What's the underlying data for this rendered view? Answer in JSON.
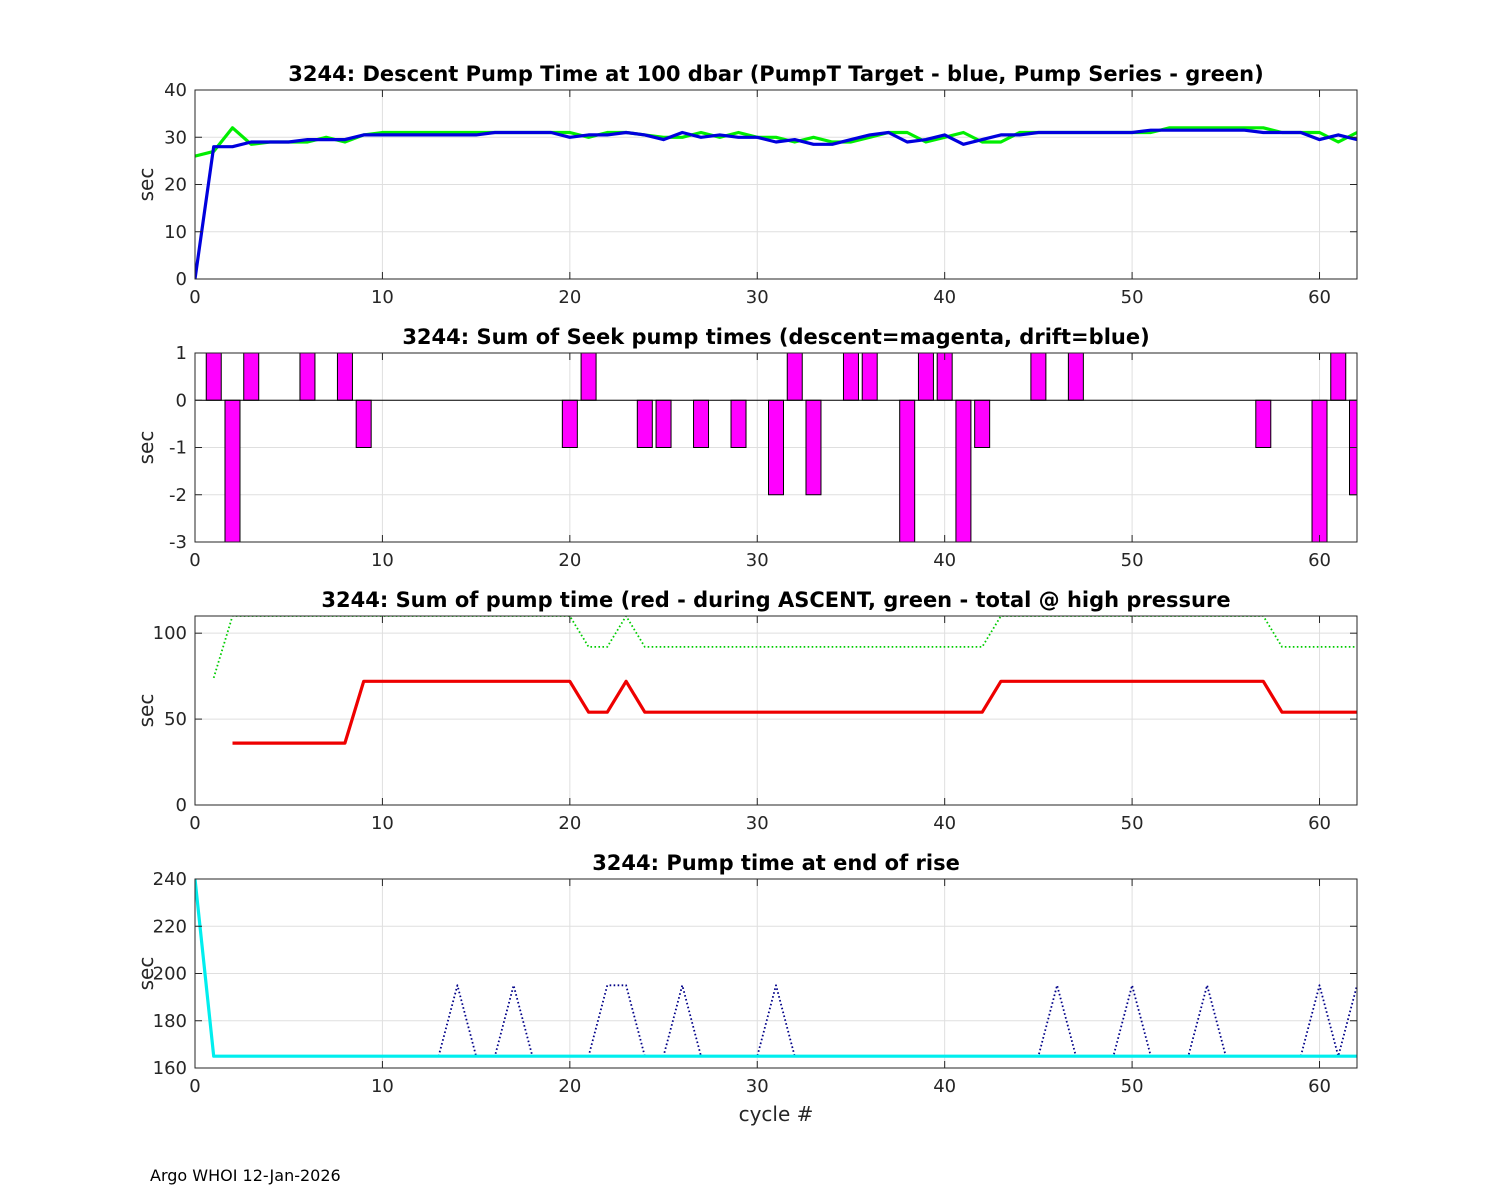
{
  "footer": "Argo WHOI 12-Jan-2026",
  "chart_data": [
    {
      "type": "line",
      "title": "3244: Descent Pump Time at 100 dbar (PumpT Target - blue, Pump Series - green)",
      "xlabel": "",
      "ylabel": "sec",
      "xlim": [
        0,
        62
      ],
      "ylim": [
        0,
        40
      ],
      "xticks": [
        0,
        10,
        20,
        30,
        40,
        50,
        60
      ],
      "yticks": [
        0,
        10,
        20,
        30,
        40
      ],
      "grid": true,
      "series": [
        {
          "color": "#00ee00",
          "style": "solid",
          "x": [
            0,
            1,
            2,
            3,
            4,
            5,
            6,
            7,
            8,
            9,
            10,
            11,
            12,
            13,
            14,
            15,
            16,
            17,
            18,
            19,
            20,
            21,
            22,
            23,
            24,
            25,
            26,
            27,
            28,
            29,
            30,
            31,
            32,
            33,
            34,
            35,
            36,
            37,
            38,
            39,
            40,
            41,
            42,
            43,
            44,
            45,
            46,
            47,
            48,
            49,
            50,
            51,
            52,
            53,
            54,
            55,
            56,
            57,
            58,
            59,
            60,
            61,
            62
          ],
          "y": [
            26,
            27,
            32,
            28.5,
            29,
            29,
            29,
            30,
            29,
            30.5,
            31,
            31,
            31,
            31,
            31,
            31,
            31,
            31,
            31,
            31,
            31,
            30,
            31,
            31,
            30.5,
            30,
            30,
            31,
            30,
            31,
            30,
            30,
            29,
            30,
            29,
            29,
            30,
            31,
            31,
            29,
            30,
            31,
            29,
            29,
            31,
            31,
            31,
            31,
            31,
            31,
            31,
            31,
            32,
            32,
            32,
            32,
            32,
            32,
            31,
            31,
            31,
            29,
            31
          ]
        },
        {
          "color": "#0000dd",
          "style": "solid",
          "x": [
            0,
            1,
            2,
            3,
            4,
            5,
            6,
            7,
            8,
            9,
            10,
            11,
            12,
            13,
            14,
            15,
            16,
            17,
            18,
            19,
            20,
            21,
            22,
            23,
            24,
            25,
            26,
            27,
            28,
            29,
            30,
            31,
            32,
            33,
            34,
            35,
            36,
            37,
            38,
            39,
            40,
            41,
            42,
            43,
            44,
            45,
            46,
            47,
            48,
            49,
            50,
            51,
            52,
            53,
            54,
            55,
            56,
            57,
            58,
            59,
            60,
            61,
            62
          ],
          "y": [
            0,
            28,
            28,
            29,
            29,
            29,
            29.5,
            29.5,
            29.5,
            30.5,
            30.5,
            30.5,
            30.5,
            30.5,
            30.5,
            30.5,
            31,
            31,
            31,
            31,
            30,
            30.5,
            30.5,
            31,
            30.5,
            29.5,
            31,
            30,
            30.5,
            30,
            30,
            29,
            29.5,
            28.5,
            28.5,
            29.5,
            30.5,
            31,
            29,
            29.5,
            30.5,
            28.5,
            29.5,
            30.5,
            30.5,
            31,
            31,
            31,
            31,
            31,
            31,
            31.5,
            31.5,
            31.5,
            31.5,
            31.5,
            31.5,
            31,
            31,
            31,
            29.5,
            30.5,
            29.5
          ]
        }
      ]
    },
    {
      "type": "bar",
      "title": "3244: Sum of Seek pump times (descent=magenta, drift=blue)",
      "xlabel": "",
      "ylabel": "sec",
      "xlim": [
        0,
        62
      ],
      "ylim": [
        -3,
        1
      ],
      "xticks": [
        0,
        10,
        20,
        30,
        40,
        50,
        60
      ],
      "yticks": [
        -3,
        -2,
        -1,
        0,
        1
      ],
      "grid": true,
      "bar_color": "#ff00ff",
      "bar_width": 0.8,
      "x": [
        1,
        2,
        3,
        6,
        8,
        9,
        20,
        21,
        24,
        25,
        27,
        29,
        31,
        32,
        33,
        35,
        36,
        38,
        39,
        40,
        41,
        42,
        45,
        47,
        57,
        60,
        61,
        62
      ],
      "values": [
        1,
        -3,
        1,
        1,
        1,
        -1,
        -1,
        1,
        -1,
        -1,
        -1,
        -1,
        -2,
        1,
        -2,
        1,
        1,
        -3,
        1,
        1,
        -3,
        -1,
        1,
        1,
        -1,
        -3,
        1,
        -2
      ]
    },
    {
      "type": "line",
      "title": "3244: Sum of pump time (red - during ASCENT, green - total @ high pressure",
      "xlabel": "",
      "ylabel": "sec",
      "xlim": [
        0,
        62
      ],
      "ylim": [
        0,
        110
      ],
      "xticks": [
        0,
        10,
        20,
        30,
        40,
        50,
        60
      ],
      "yticks": [
        0,
        50,
        100
      ],
      "grid": true,
      "series": [
        {
          "color": "#00cc00",
          "style": "dotted",
          "x": [
            1,
            2,
            3,
            4,
            5,
            6,
            7,
            8,
            9,
            10,
            11,
            12,
            13,
            14,
            15,
            16,
            17,
            18,
            19,
            20,
            21,
            22,
            23,
            24,
            25,
            26,
            27,
            28,
            29,
            30,
            31,
            32,
            33,
            34,
            35,
            36,
            37,
            38,
            39,
            40,
            41,
            42,
            43,
            44,
            45,
            46,
            47,
            48,
            49,
            50,
            51,
            52,
            53,
            54,
            55,
            56,
            57,
            58,
            59,
            60,
            61,
            62
          ],
          "y": [
            74,
            110,
            110,
            110,
            110,
            110,
            110,
            110,
            110,
            110,
            110,
            110,
            110,
            110,
            110,
            110,
            110,
            110,
            110,
            110,
            92,
            92,
            110,
            92,
            92,
            92,
            92,
            92,
            92,
            92,
            92,
            92,
            92,
            92,
            92,
            92,
            92,
            92,
            92,
            92,
            92,
            92,
            110,
            110,
            110,
            110,
            110,
            110,
            110,
            110,
            110,
            110,
            110,
            110,
            110,
            110,
            110,
            92,
            92,
            92,
            92,
            92
          ]
        },
        {
          "color": "#ee0000",
          "style": "solid",
          "x": [
            2,
            3,
            4,
            5,
            6,
            7,
            8,
            9,
            10,
            11,
            12,
            13,
            14,
            15,
            16,
            17,
            18,
            19,
            20,
            21,
            22,
            23,
            24,
            25,
            26,
            27,
            28,
            29,
            30,
            31,
            32,
            33,
            34,
            35,
            36,
            37,
            38,
            39,
            40,
            41,
            42,
            43,
            44,
            45,
            46,
            47,
            48,
            49,
            50,
            51,
            52,
            53,
            54,
            55,
            56,
            57,
            58,
            59,
            60,
            61,
            62
          ],
          "y": [
            36,
            36,
            36,
            36,
            36,
            36,
            36,
            72,
            72,
            72,
            72,
            72,
            72,
            72,
            72,
            72,
            72,
            72,
            72,
            54,
            54,
            72,
            54,
            54,
            54,
            54,
            54,
            54,
            54,
            54,
            54,
            54,
            54,
            54,
            54,
            54,
            54,
            54,
            54,
            54,
            54,
            72,
            72,
            72,
            72,
            72,
            72,
            72,
            72,
            72,
            72,
            72,
            72,
            72,
            72,
            72,
            54,
            54,
            54,
            54,
            54
          ]
        }
      ]
    },
    {
      "type": "line",
      "title": "3244: Pump time at end of rise",
      "xlabel": "cycle #",
      "ylabel": "sec",
      "xlim": [
        0,
        62
      ],
      "ylim": [
        160,
        240
      ],
      "xticks": [
        0,
        10,
        20,
        30,
        40,
        50,
        60
      ],
      "yticks": [
        160,
        180,
        200,
        220,
        240
      ],
      "grid": true,
      "series": [
        {
          "color": "#000088",
          "style": "dotted",
          "x": [
            13,
            14,
            15,
            16,
            17,
            18,
            19,
            20,
            21,
            22,
            23,
            24,
            25,
            26,
            27,
            28,
            29,
            30,
            31,
            32,
            33,
            34,
            35,
            36,
            37,
            38,
            39,
            40,
            41,
            42,
            43,
            44,
            45,
            46,
            47,
            48,
            49,
            50,
            51,
            52,
            53,
            54,
            55,
            56,
            57,
            58,
            59,
            60,
            61,
            62
          ],
          "y": [
            165,
            195,
            165,
            165,
            195,
            165,
            165,
            165,
            165,
            195,
            195,
            165,
            165,
            195,
            165,
            165,
            165,
            165,
            195,
            165,
            165,
            165,
            165,
            165,
            165,
            165,
            165,
            165,
            165,
            165,
            165,
            165,
            165,
            195,
            165,
            165,
            165,
            195,
            165,
            165,
            165,
            195,
            165,
            165,
            165,
            165,
            165,
            195,
            165,
            195
          ]
        },
        {
          "color": "#00eeee",
          "style": "solid",
          "x": [
            0,
            1,
            62
          ],
          "y": [
            240,
            165,
            165
          ]
        }
      ]
    }
  ]
}
